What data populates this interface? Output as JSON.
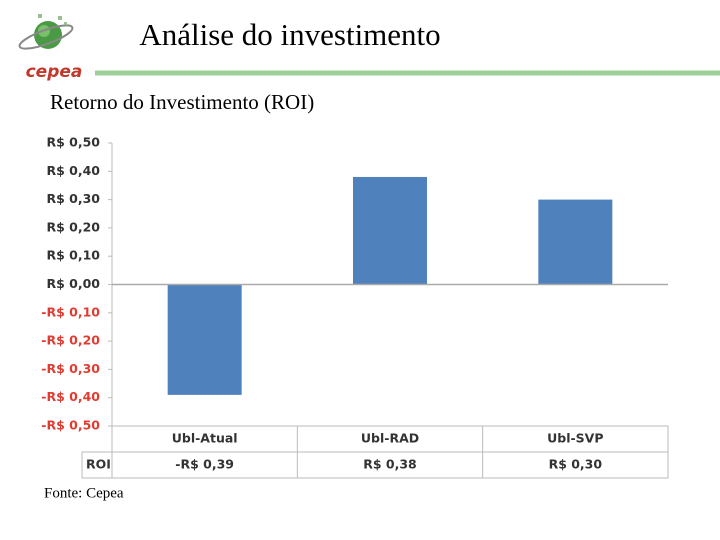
{
  "header": {
    "title": "Análise do investimento",
    "logo": "cepea"
  },
  "footer": {
    "source": "Fonte: Cepea"
  },
  "chart_data": {
    "type": "bar",
    "title": "Retorno do Investimento (ROI)",
    "categories": [
      "Ubl-Atual",
      "Ubl-RAD",
      "Ubl-SVP"
    ],
    "series": [
      {
        "name": "ROI",
        "color": "#4f81bd",
        "values": [
          -0.39,
          0.38,
          0.3
        ],
        "value_labels": [
          "-R$ 0,39",
          "R$ 0,38",
          "R$ 0,30"
        ]
      }
    ],
    "ylim": [
      -0.5,
      0.5
    ],
    "yticks": [
      {
        "value": -0.5,
        "label": "-R$ 0,50"
      },
      {
        "value": -0.4,
        "label": "-R$ 0,40"
      },
      {
        "value": -0.3,
        "label": "-R$ 0,30"
      },
      {
        "value": -0.2,
        "label": "-R$ 0,20"
      },
      {
        "value": -0.1,
        "label": "-R$ 0,10"
      },
      {
        "value": 0,
        "label": "R$ 0,00"
      },
      {
        "value": 0.1,
        "label": "R$ 0,10"
      },
      {
        "value": 0.2,
        "label": "R$ 0,20"
      },
      {
        "value": 0.3,
        "label": "R$ 0,30"
      },
      {
        "value": 0.4,
        "label": "R$ 0,40"
      },
      {
        "value": 0.5,
        "label": "R$ 0,50"
      }
    ],
    "negative_tick_color": "#e03c31",
    "grid": false,
    "data_table": true
  }
}
